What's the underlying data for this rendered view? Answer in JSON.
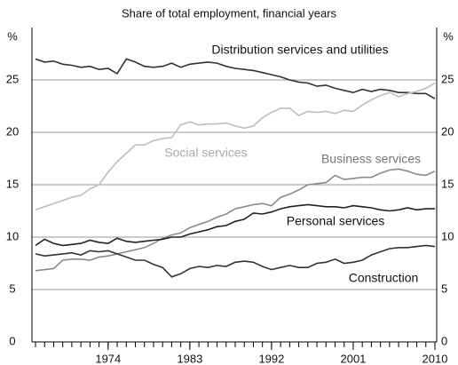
{
  "chart_data": {
    "type": "line",
    "title": "Share of total employment, financial years",
    "y_unit": "%",
    "x": [
      1966,
      1967,
      1968,
      1969,
      1970,
      1971,
      1972,
      1973,
      1974,
      1975,
      1976,
      1977,
      1978,
      1979,
      1980,
      1981,
      1982,
      1983,
      1984,
      1985,
      1986,
      1987,
      1988,
      1989,
      1990,
      1991,
      1992,
      1993,
      1994,
      1995,
      1996,
      1997,
      1998,
      1999,
      2000,
      2001,
      2002,
      2003,
      2004,
      2005,
      2006,
      2007,
      2008,
      2009,
      2010
    ],
    "xlim": [
      1966,
      2010
    ],
    "xticks": [
      1974,
      1983,
      1992,
      2001,
      2010
    ],
    "ylim": [
      0,
      30
    ],
    "yticks": [
      0,
      5,
      10,
      15,
      20,
      25
    ],
    "grid": true,
    "series": [
      {
        "name": "Distribution services and utilities",
        "color": "#333333",
        "values": [
          27,
          26.7,
          26.8,
          26.5,
          26.4,
          26.2,
          26.3,
          26.0,
          26.1,
          25.6,
          27.0,
          26.7,
          26.3,
          26.2,
          26.3,
          26.6,
          26.2,
          26.5,
          26.6,
          26.7,
          26.6,
          26.3,
          26.1,
          26.0,
          25.9,
          25.7,
          25.5,
          25.3,
          25.0,
          24.8,
          24.7,
          24.4,
          24.5,
          24.2,
          24.0,
          23.8,
          24.1,
          23.9,
          24.1,
          24.0,
          23.8,
          23.8,
          23.7,
          23.7,
          23.2
        ]
      },
      {
        "name": "Social services",
        "color": "#bdbdbd",
        "values": [
          12.6,
          12.9,
          13.2,
          13.5,
          13.8,
          14.0,
          14.6,
          15.0,
          16.2,
          17.2,
          18.0,
          18.8,
          18.8,
          19.2,
          19.4,
          19.5,
          20.7,
          21.0,
          20.7,
          20.8,
          20.8,
          20.9,
          20.6,
          20.4,
          20.6,
          21.4,
          21.9,
          22.3,
          22.3,
          21.6,
          22.0,
          21.9,
          22.0,
          21.8,
          22.1,
          22.0,
          22.6,
          23.1,
          23.5,
          23.8,
          23.4,
          23.7,
          23.9,
          24.2,
          24.7
        ]
      },
      {
        "name": "Business services",
        "color": "#8a8a8a",
        "values": [
          6.8,
          6.9,
          7.0,
          7.8,
          7.9,
          7.9,
          7.8,
          8.1,
          8.2,
          8.4,
          8.6,
          8.8,
          9.0,
          9.4,
          9.9,
          10.2,
          10.4,
          10.9,
          11.2,
          11.5,
          11.9,
          12.2,
          12.7,
          12.9,
          13.1,
          13.2,
          13.0,
          13.8,
          14.1,
          14.5,
          15.0,
          15.1,
          15.2,
          15.9,
          15.5,
          15.6,
          15.7,
          15.7,
          16.1,
          16.4,
          16.5,
          16.3,
          16.0,
          15.9,
          16.3
        ]
      },
      {
        "name": "Personal services",
        "color": "#222222",
        "values": [
          9.2,
          9.8,
          9.4,
          9.2,
          9.3,
          9.4,
          9.7,
          9.5,
          9.4,
          9.9,
          9.6,
          9.5,
          9.6,
          9.7,
          9.8,
          10.0,
          10.0,
          10.3,
          10.5,
          10.7,
          11.0,
          11.1,
          11.5,
          11.7,
          12.3,
          12.2,
          12.4,
          12.7,
          12.9,
          13.0,
          13.1,
          13.0,
          12.9,
          12.9,
          12.8,
          13.0,
          12.9,
          12.8,
          12.6,
          12.5,
          12.6,
          12.8,
          12.6,
          12.7,
          12.7
        ]
      },
      {
        "name": "Construction",
        "color": "#333333",
        "values": [
          8.4,
          8.2,
          8.3,
          8.4,
          8.5,
          8.3,
          8.7,
          8.6,
          8.7,
          8.4,
          8.1,
          7.8,
          7.8,
          7.4,
          7.1,
          6.2,
          6.5,
          7.0,
          7.2,
          7.1,
          7.3,
          7.2,
          7.6,
          7.7,
          7.6,
          7.2,
          6.9,
          7.1,
          7.3,
          7.1,
          7.1,
          7.5,
          7.6,
          7.9,
          7.5,
          7.6,
          7.8,
          8.3,
          8.6,
          8.9,
          9.0,
          9.0,
          9.1,
          9.2,
          9.1
        ]
      }
    ]
  }
}
